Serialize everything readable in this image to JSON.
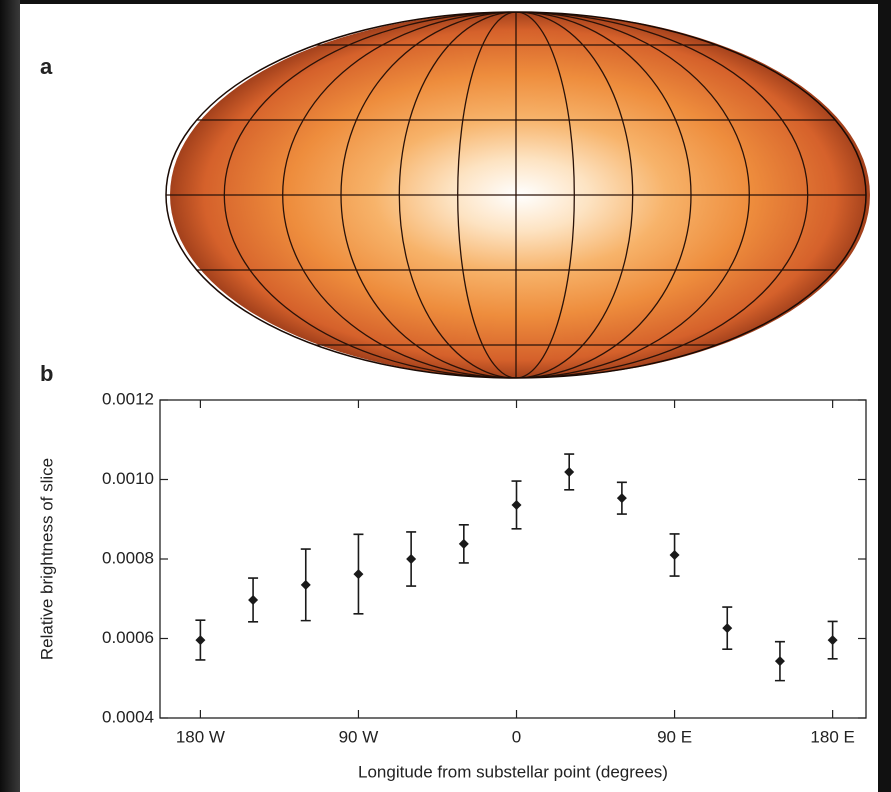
{
  "panel_labels": [
    "a",
    "b"
  ],
  "chart_data": {
    "type": "errorbar",
    "xlabel": "Longitude from substellar point (degrees)",
    "ylabel": "Relative brightness of slice",
    "x": [
      -180,
      -150,
      -120,
      -90,
      -60,
      -30,
      0,
      30,
      60,
      90,
      120,
      150,
      180
    ],
    "values": [
      0.000596,
      0.000697,
      0.000735,
      0.000762,
      0.0008,
      0.000838,
      0.000936,
      0.001019,
      0.000953,
      0.00081,
      0.000626,
      0.000543,
      0.000596
    ],
    "errors": [
      5e-05,
      5.5e-05,
      9e-05,
      0.0001,
      6.8e-05,
      4.8e-05,
      6e-05,
      4.5e-05,
      4e-05,
      5.3e-05,
      5.3e-05,
      4.9e-05,
      4.7e-05
    ],
    "color": "#1a1a1a",
    "xlim": [
      -203,
      199
    ],
    "ylim": [
      0.0004,
      0.0012
    ],
    "xticks": [
      {
        "value": -180,
        "label": "180 W"
      },
      {
        "value": -90,
        "label": "90 W"
      },
      0,
      {
        "value": 90,
        "label": "90 E"
      },
      {
        "value": 180,
        "label": "180 E"
      }
    ],
    "yticks": [
      0.0004,
      0.0006,
      0.0008,
      {
        "value": 0.001,
        "label": "0.0010"
      },
      0.0012
    ]
  }
}
